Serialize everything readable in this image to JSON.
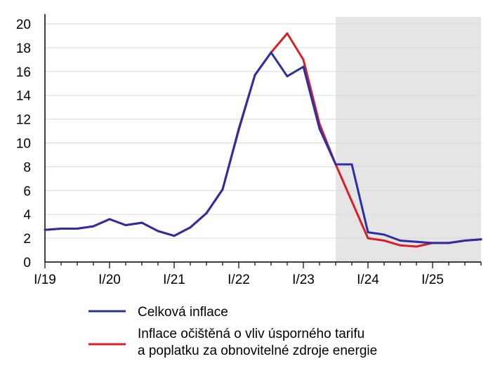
{
  "chart_data": {
    "type": "line",
    "title": "",
    "xlabel": "",
    "ylabel": "",
    "ylim": [
      0,
      20
    ],
    "yticks": [
      0,
      2,
      4,
      6,
      8,
      10,
      12,
      14,
      16,
      18,
      20
    ],
    "grid": "horizontal",
    "xtick_labels": [
      "I/19",
      "I/20",
      "I/21",
      "I/22",
      "I/23",
      "I/24",
      "I/25"
    ],
    "x": [
      "I/19",
      "II/19",
      "III/19",
      "IV/19",
      "I/20",
      "II/20",
      "III/20",
      "IV/20",
      "I/21",
      "II/21",
      "III/21",
      "IV/21",
      "I/22",
      "II/22",
      "III/22",
      "IV/22",
      "I/23",
      "II/23",
      "III/23",
      "IV/23",
      "I/24",
      "II/24",
      "III/24",
      "IV/24",
      "I/25",
      "II/25",
      "III/25",
      "IV/25"
    ],
    "forecast_from": "III/23",
    "legend_position": "bottom",
    "series": [
      {
        "name": "Inflace očištěná o vliv úsporného tarifu a poplatku za obnovitelné zdroje energie",
        "legend_lines": [
          "Inflace očištěná o vliv úsporného tarifu",
          "a poplatku za obnovitelné zdroje energie"
        ],
        "color": "#d62027",
        "values": [
          2.7,
          2.8,
          2.8,
          3.0,
          3.6,
          3.1,
          3.3,
          2.6,
          2.2,
          2.9,
          4.1,
          6.1,
          11.2,
          15.7,
          17.6,
          19.2,
          17.0,
          11.6,
          8.2,
          5.1,
          2.0,
          1.8,
          1.4,
          1.3,
          1.6,
          1.6,
          1.8,
          1.9
        ]
      },
      {
        "name": "Celková inflace",
        "legend_lines": [
          "Celková inflace"
        ],
        "color": "#2b2fa3",
        "values": [
          2.7,
          2.8,
          2.8,
          3.0,
          3.6,
          3.1,
          3.3,
          2.6,
          2.2,
          2.9,
          4.1,
          6.1,
          11.1,
          15.7,
          17.6,
          15.6,
          16.4,
          11.2,
          8.2,
          8.2,
          2.5,
          2.3,
          1.8,
          1.7,
          1.6,
          1.6,
          1.8,
          1.9
        ]
      }
    ]
  },
  "colors": {
    "forecast_shade": "#e5e5e5",
    "gridline": "#d9d9d9",
    "axis": "#000000"
  }
}
